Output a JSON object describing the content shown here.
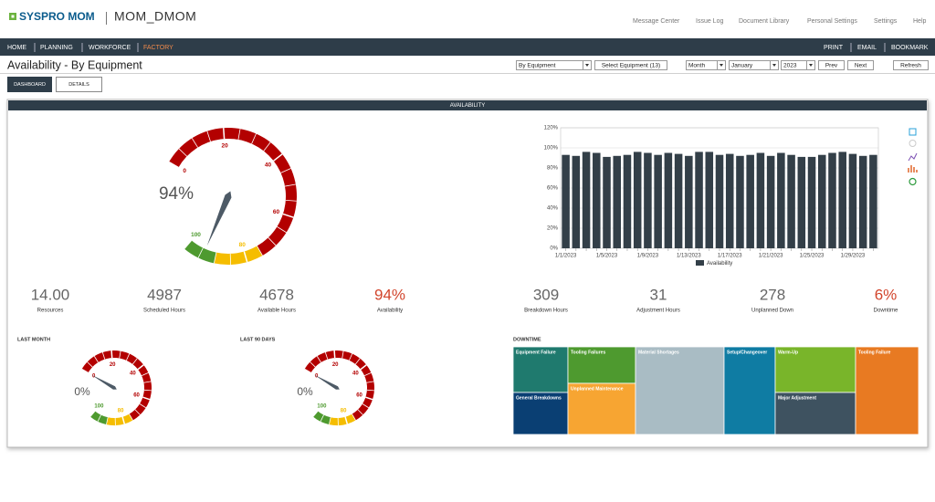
{
  "header": {
    "brand": "SYSPRO MOM",
    "app": "MOM_DMOM",
    "links": [
      "Message Center",
      "Issue Log",
      "Document Library",
      "Personal Settings",
      "Settings",
      "Help"
    ]
  },
  "nav": {
    "left": [
      {
        "label": "HOME",
        "color": "#ffffff"
      },
      {
        "label": "PLANNING",
        "color": "#ffffff"
      },
      {
        "label": "WORKFORCE",
        "color": "#ffffff"
      },
      {
        "label": "FACTORY",
        "color": "#f08a4b"
      }
    ],
    "right": [
      "PRINT",
      "EMAIL",
      "BOOKMARK"
    ]
  },
  "toolbar": {
    "title": "Availability - By Equipment",
    "view": "By Equipment",
    "select_button": "Select Equipment (13)",
    "period": "Month",
    "month": "January",
    "year": "2023",
    "prev": "Prev",
    "next": "Next",
    "refresh": "Refresh"
  },
  "tabs": [
    "DASHBOARD",
    "DETAILS"
  ],
  "panel_title": "AVAILABILITY",
  "gauge": {
    "value": 94,
    "label": "94%",
    "ticks": [
      0,
      20,
      40,
      60,
      80,
      100
    ],
    "bands": [
      {
        "from": 0,
        "to": 75,
        "color": "#b30000"
      },
      {
        "from": 75,
        "to": 90,
        "color": "#f5bd00"
      },
      {
        "from": 90,
        "to": 100,
        "color": "#4e9a2f"
      }
    ]
  },
  "chart_data": {
    "type": "bar",
    "categories": [
      "1/1/2023",
      null,
      null,
      null,
      "1/5/2023",
      null,
      null,
      null,
      "1/9/2023",
      null,
      null,
      null,
      "1/13/2023",
      null,
      null,
      null,
      "1/17/2023",
      null,
      null,
      null,
      "1/21/2023",
      null,
      null,
      null,
      "1/25/2023",
      null,
      null,
      null,
      "1/29/2023",
      null,
      null
    ],
    "series": [
      {
        "name": "Availability",
        "color": "#333f48",
        "values": [
          93,
          92,
          96,
          95,
          91,
          92,
          93,
          96,
          95,
          93,
          95,
          94,
          92,
          96,
          96,
          93,
          94,
          92,
          93,
          95,
          92,
          95,
          93,
          91,
          91,
          93,
          95,
          96,
          94,
          92,
          93
        ]
      }
    ],
    "ylim": [
      0,
      120
    ],
    "yticks": [
      {
        "value": 0,
        "label": "0%"
      },
      {
        "value": 20,
        "label": "20%"
      },
      {
        "value": 40,
        "label": "40%"
      },
      {
        "value": 60,
        "label": "60%"
      },
      {
        "value": 80,
        "label": "80%"
      },
      {
        "value": 100,
        "label": "100%"
      },
      {
        "value": 120,
        "label": "120%"
      }
    ],
    "grid": true
  },
  "kpis": [
    {
      "value": "14.00",
      "label": "Resources",
      "color": "#666666"
    },
    {
      "value": "4987",
      "label": "Scheduled Hours",
      "color": "#666666"
    },
    {
      "value": "4678",
      "label": "Available Hours",
      "color": "#666666"
    },
    {
      "value": "94%",
      "label": "Availability",
      "color": "#d2452c"
    },
    {
      "value": "309",
      "label": "Breakdown Hours",
      "color": "#666666"
    },
    {
      "value": "31",
      "label": "Adjustment Hours",
      "color": "#666666"
    },
    {
      "value": "278",
      "label": "Unplanned Down",
      "color": "#666666"
    },
    {
      "value": "6%",
      "label": "Downtime",
      "color": "#d2452c"
    }
  ],
  "small_gauges": [
    {
      "title": "LAST MONTH",
      "value": 0,
      "label": "0%"
    },
    {
      "title": "LAST 90 DAYS",
      "value": 0,
      "label": "0%"
    }
  ],
  "downtime": {
    "title": "DOWNTIME",
    "items": [
      {
        "label": "Equipment Failure",
        "color": "#1f7a6e"
      },
      {
        "label": "General Breakdowns",
        "color": "#0a3f73"
      },
      {
        "label": "Tooling Failures",
        "color": "#4e9a2f"
      },
      {
        "label": "Unplanned Maintenance",
        "color": "#f7a532"
      },
      {
        "label": "Material Shortages",
        "color": "#a9bcc4"
      },
      {
        "label": "Setup/Changeover",
        "color": "#0f7ca3"
      },
      {
        "label": "Warm-Up",
        "color": "#79b52a"
      },
      {
        "label": "Major Adjustment",
        "color": "#3e5260"
      },
      {
        "label": "Tooling Failure",
        "color": "#e87a22"
      }
    ]
  }
}
